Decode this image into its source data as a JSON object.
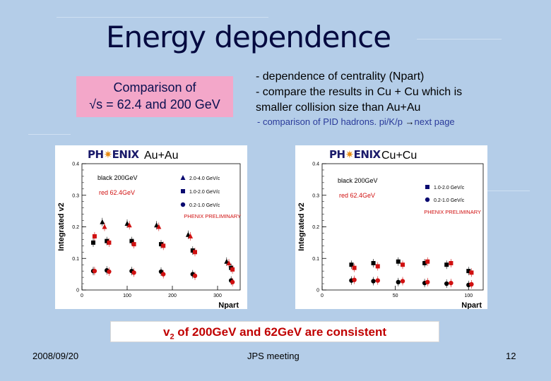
{
  "slide": {
    "title": "Energy dependence",
    "pink_line1": "Comparison of",
    "pink_line2": "√s = 62.4 and 200 GeV",
    "bullet1": "- dependence of centrality (Npart)",
    "bullet2": "- compare the results in Cu + Cu which is",
    "bullet3": "smaller collision size than  Au+Au",
    "sub_bullet_a": "- comparison of PID hadrons. pi/K/p ",
    "sub_bullet_arrow": "→",
    "sub_bullet_b": "next page",
    "conclusion_pre": "v",
    "conclusion_sub": "2",
    "conclusion_post": " of 200GeV and 62GeV are consistent",
    "date": "2008/09/20",
    "meeting": "JPS meeting",
    "page": "12"
  },
  "panels": {
    "au": {
      "logo_a": "PH",
      "logo_star": "✷",
      "logo_b": "ENIX",
      "system": "Au+Au",
      "black_label": "black 200GeV",
      "red_label": "red  62.4GeV",
      "legend_hi": "2.0-4.0 GeV/c",
      "legend_mid": "1.0-2.0 GeV/c",
      "legend_lo": "0.2-1.0 GeV/c",
      "prelim": "PHENIX PRELIMINARY",
      "ylabel": "Integrated v2",
      "xlabel": "Npart",
      "yticks": [
        "0",
        "0.1",
        "0.2",
        "0.3",
        "0.4"
      ],
      "xticks": [
        "0",
        "100",
        "200",
        "300"
      ]
    },
    "cu": {
      "logo_a": "PH",
      "logo_star": "✷",
      "logo_b": "ENIX",
      "system": "Cu+Cu",
      "black_label": "black 200GeV",
      "red_label": "red  62.4GeV",
      "legend_mid": "1.0-2.0 GeV/c",
      "legend_lo": "0.2-1.0 GeV/c",
      "prelim": "PHENIX PRELIMINARY",
      "ylabel": "Integrated v2",
      "xlabel": "Npart",
      "yticks": [
        "0",
        "0.1",
        "0.2",
        "0.3",
        "0.4"
      ],
      "xticks": [
        "0",
        "50",
        "100"
      ]
    }
  },
  "chart_data": [
    {
      "type": "scatter",
      "xlabel": "Npart",
      "ylabel": "Integrated v2",
      "xlim": [
        0,
        350
      ],
      "ylim": [
        0,
        0.4
      ],
      "series": [
        {
          "name": "black 200GeV 2.0-4.0 GeV/c",
          "color": "#000000",
          "marker": "triangle",
          "x": [
            45,
            100,
            165,
            235,
            320
          ],
          "y": [
            0.215,
            0.21,
            0.205,
            0.175,
            0.09
          ]
        },
        {
          "name": "red 62.4GeV 2.0-4.0 GeV/c",
          "color": "#d01010",
          "marker": "triangle",
          "x": [
            50,
            105,
            170,
            240,
            325
          ],
          "y": [
            0.2,
            0.205,
            0.2,
            0.17,
            0.085
          ]
        },
        {
          "name": "black 200GeV 1.0-2.0 GeV/c",
          "color": "#000000",
          "marker": "square",
          "x": [
            25,
            55,
            110,
            175,
            245,
            330
          ],
          "y": [
            0.15,
            0.155,
            0.155,
            0.145,
            0.125,
            0.07
          ]
        },
        {
          "name": "red 62.4GeV 1.0-2.0 GeV/c",
          "color": "#d01010",
          "marker": "square",
          "x": [
            28,
            60,
            115,
            180,
            250,
            333
          ],
          "y": [
            0.17,
            0.15,
            0.145,
            0.14,
            0.12,
            0.065
          ]
        },
        {
          "name": "black 200GeV 0.2-1.0 GeV/c",
          "color": "#000000",
          "marker": "circle",
          "x": [
            25,
            55,
            110,
            175,
            245,
            330
          ],
          "y": [
            0.06,
            0.062,
            0.06,
            0.058,
            0.05,
            0.03
          ]
        },
        {
          "name": "red 62.4GeV 0.2-1.0 GeV/c",
          "color": "#d01010",
          "marker": "circle",
          "x": [
            28,
            60,
            115,
            180,
            250,
            333
          ],
          "y": [
            0.06,
            0.058,
            0.055,
            0.05,
            0.045,
            0.025
          ]
        }
      ]
    },
    {
      "type": "scatter",
      "xlabel": "Npart",
      "ylabel": "Integrated v2",
      "xlim": [
        0,
        110
      ],
      "ylim": [
        0,
        0.4
      ],
      "series": [
        {
          "name": "black 200GeV 1.0-2.0 GeV/c",
          "color": "#000000",
          "marker": "square",
          "x": [
            20,
            35,
            52,
            70,
            85,
            100
          ],
          "y": [
            0.08,
            0.085,
            0.09,
            0.085,
            0.08,
            0.06
          ]
        },
        {
          "name": "red 62.4GeV 1.0-2.0 GeV/c",
          "color": "#d01010",
          "marker": "square",
          "x": [
            22,
            38,
            55,
            72,
            88,
            102
          ],
          "y": [
            0.07,
            0.075,
            0.08,
            0.09,
            0.085,
            0.055
          ]
        },
        {
          "name": "black 200GeV 0.2-1.0 GeV/c",
          "color": "#000000",
          "marker": "circle",
          "x": [
            20,
            35,
            52,
            70,
            85,
            100
          ],
          "y": [
            0.03,
            0.028,
            0.025,
            0.022,
            0.02,
            0.016
          ]
        },
        {
          "name": "red 62.4GeV 0.2-1.0 GeV/c",
          "color": "#d01010",
          "marker": "circle",
          "x": [
            22,
            38,
            55,
            72,
            88,
            102
          ],
          "y": [
            0.032,
            0.03,
            0.028,
            0.025,
            0.022,
            0.018
          ]
        }
      ]
    }
  ]
}
